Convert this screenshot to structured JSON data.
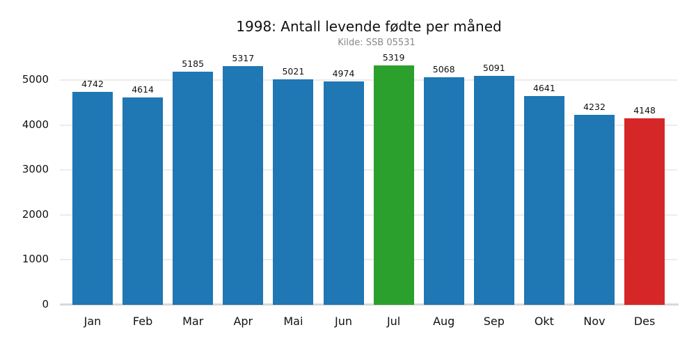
{
  "chart_data": {
    "type": "bar",
    "title": "1998: Antall levende fødte per måned",
    "subtitle": "Kilde: SSB 05531",
    "xlabel": "",
    "ylabel": "",
    "categories": [
      "Jan",
      "Feb",
      "Mar",
      "Apr",
      "Mai",
      "Jun",
      "Jul",
      "Aug",
      "Sep",
      "Okt",
      "Nov",
      "Des"
    ],
    "values": [
      4742,
      4614,
      5185,
      5317,
      5021,
      4974,
      5319,
      5068,
      5091,
      4641,
      4232,
      4148
    ],
    "ylim": [
      0,
      5500
    ],
    "yticks": [
      "0",
      "1000",
      "2000",
      "3000",
      "4000",
      "5000"
    ],
    "grid": true,
    "legend": null,
    "highlights": {
      "max": "Jul",
      "min": "Des"
    },
    "colors": {
      "default": "#1f77b4",
      "max": "#2ca02c",
      "min": "#d62728",
      "grid": "#ececec",
      "axis": "#d9d9d9"
    }
  }
}
